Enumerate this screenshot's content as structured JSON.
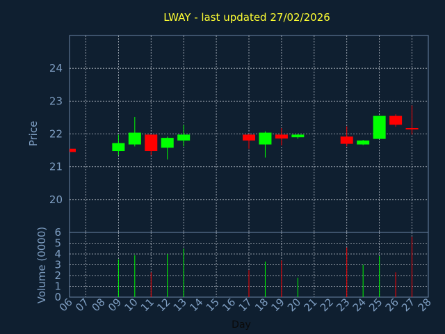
{
  "chart_data": {
    "type": "candlestick",
    "title": "LWAY - last updated 27/02/2026",
    "xlabel": "Day",
    "ylabel_price": "Price",
    "ylabel_volume": "Volume (0000)",
    "price_ylim": [
      19,
      25
    ],
    "price_yticks": [
      "20",
      "21",
      "22",
      "23",
      "24"
    ],
    "volume_ylim": [
      0,
      6
    ],
    "volume_yticks": [
      "0",
      "1",
      "2",
      "3",
      "4",
      "5",
      "6"
    ],
    "x_ticks": [
      "06",
      "07",
      "08",
      "09",
      "10",
      "11",
      "12",
      "13",
      "14",
      "15",
      "16",
      "17",
      "18",
      "19",
      "20",
      "21",
      "22",
      "23",
      "24",
      "25",
      "26",
      "27",
      "28"
    ],
    "grid": true,
    "colors": {
      "up": "#00ff00",
      "down": "#ff0000",
      "background": "#0f1f30",
      "title": "#ffff33",
      "axis_text": "#7f9fc3"
    },
    "candles": [
      {
        "day": "06",
        "open": 21.55,
        "high": 21.55,
        "low": 21.45,
        "close": 21.45,
        "volume": 0.0
      },
      {
        "day": "09",
        "open": 21.48,
        "high": 21.98,
        "low": 21.35,
        "close": 21.72,
        "volume": 3.5
      },
      {
        "day": "10",
        "open": 21.68,
        "high": 22.52,
        "low": 21.62,
        "close": 22.04,
        "volume": 3.9
      },
      {
        "day": "11",
        "open": 21.98,
        "high": 21.98,
        "low": 21.35,
        "close": 21.48,
        "volume": 2.3
      },
      {
        "day": "12",
        "open": 21.58,
        "high": 21.92,
        "low": 21.22,
        "close": 21.88,
        "volume": 4.0
      },
      {
        "day": "13",
        "open": 21.8,
        "high": 22.27,
        "low": 21.62,
        "close": 21.98,
        "volume": 4.5
      },
      {
        "day": "17",
        "open": 21.98,
        "high": 22.0,
        "low": 21.55,
        "close": 21.8,
        "volume": 2.5
      },
      {
        "day": "18",
        "open": 21.68,
        "high": 22.08,
        "low": 21.28,
        "close": 22.04,
        "volume": 3.3
      },
      {
        "day": "19",
        "open": 21.98,
        "high": 22.18,
        "low": 21.65,
        "close": 21.86,
        "volume": 3.4
      },
      {
        "day": "20",
        "open": 21.9,
        "high": 22.0,
        "low": 21.85,
        "close": 21.98,
        "volume": 1.8
      },
      {
        "day": "23",
        "open": 21.92,
        "high": 22.23,
        "low": 21.62,
        "close": 21.7,
        "volume": 4.6
      },
      {
        "day": "24",
        "open": 21.68,
        "high": 21.82,
        "low": 21.66,
        "close": 21.8,
        "volume": 3.0
      },
      {
        "day": "25",
        "open": 21.85,
        "high": 22.56,
        "low": 21.85,
        "close": 22.55,
        "volume": 3.8
      },
      {
        "day": "26",
        "open": 22.55,
        "high": 22.6,
        "low": 22.22,
        "close": 22.28,
        "volume": 2.3
      },
      {
        "day": "27",
        "open": 22.18,
        "high": 22.87,
        "low": 21.98,
        "close": 22.16,
        "volume": 5.6
      }
    ]
  }
}
